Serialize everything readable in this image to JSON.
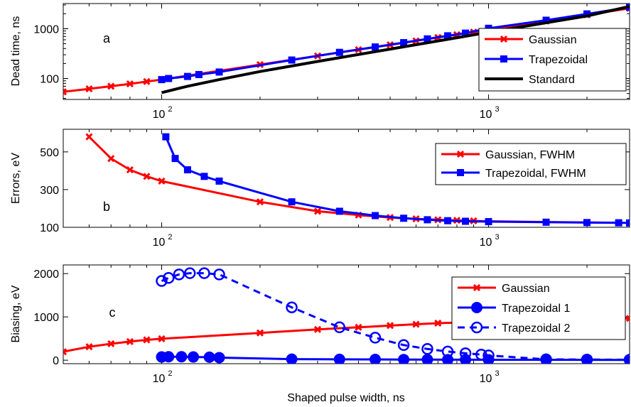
{
  "figure": {
    "xlabel": "Shaped pulse width, ns"
  },
  "chart_data": [
    {
      "type": "line",
      "panel_letter": "a",
      "ylabel": "Dead time, ns",
      "xscale": "log",
      "yscale": "log",
      "xlim": [
        50,
        2700
      ],
      "ylim": [
        38,
        3200
      ],
      "xticks": [
        {
          "value": 100,
          "base": "10",
          "exp": "2"
        },
        {
          "value": 1000,
          "base": "10",
          "exp": "3"
        }
      ],
      "yticks": [
        {
          "value": 100,
          "label": "100"
        },
        {
          "value": 1000,
          "label": "1000"
        }
      ],
      "legend_position": "bottom-right",
      "grid": false,
      "series": [
        {
          "name": "Gaussian",
          "color": "#ff0000",
          "marker": "x",
          "dash": false,
          "x": [
            50,
            60,
            70,
            80,
            90,
            100,
            200,
            300,
            400,
            500,
            600,
            700,
            800,
            900,
            1000,
            1500,
            2000,
            2700
          ],
          "y": [
            54,
            62,
            70,
            78,
            87,
            95,
            190,
            285,
            380,
            475,
            570,
            665,
            760,
            855,
            950,
            1425,
            1900,
            2565
          ]
        },
        {
          "name": "Trapezoidal",
          "color": "#0000ff",
          "marker": "square",
          "dash": false,
          "x": [
            100,
            105,
            120,
            130,
            150,
            250,
            350,
            450,
            550,
            650,
            750,
            850,
            1000,
            1500,
            2000,
            2700
          ],
          "y": [
            95,
            100,
            110,
            120,
            135,
            235,
            335,
            430,
            525,
            625,
            720,
            815,
            1020,
            1480,
            1980,
            2700
          ]
        },
        {
          "name": "Standard",
          "color": "#000000",
          "marker": "none",
          "dash": false,
          "x": [
            100,
            120,
            150,
            200,
            300,
            500,
            800,
            1000,
            1500,
            2000,
            2700
          ],
          "y": [
            52,
            70,
            95,
            138,
            220,
            390,
            660,
            850,
            1320,
            1800,
            2800
          ]
        }
      ]
    },
    {
      "type": "line",
      "panel_letter": "b",
      "ylabel": "Errors, eV",
      "xscale": "log",
      "yscale": "linear",
      "xlim": [
        50,
        2700
      ],
      "ylim": [
        100,
        620
      ],
      "xticks": [
        {
          "value": 100,
          "base": "10",
          "exp": "2"
        },
        {
          "value": 1000,
          "base": "10",
          "exp": "3"
        }
      ],
      "yticks": [
        {
          "value": 100,
          "label": "100"
        },
        {
          "value": 300,
          "label": "300"
        },
        {
          "value": 500,
          "label": "500"
        }
      ],
      "legend_position": "top-right",
      "grid": false,
      "series": [
        {
          "name": "Gaussian, FWHM",
          "color": "#ff0000",
          "marker": "x",
          "dash": false,
          "x": [
            60,
            70,
            80,
            90,
            100,
            200,
            300,
            400,
            500,
            600,
            700,
            800,
            900,
            1000,
            1500,
            2000,
            2500
          ],
          "y": [
            580,
            465,
            405,
            370,
            345,
            235,
            185,
            165,
            152,
            145,
            140,
            137,
            134,
            132,
            128,
            126,
            124
          ]
        },
        {
          "name": "Trapezoidal, FWHM",
          "color": "#0000ff",
          "marker": "square",
          "dash": false,
          "x": [
            103,
            110,
            120,
            135,
            150,
            250,
            350,
            450,
            550,
            650,
            750,
            850,
            1000,
            1500,
            2000,
            2500,
            2700
          ],
          "y": [
            580,
            465,
            405,
            370,
            345,
            235,
            185,
            162,
            148,
            140,
            135,
            132,
            130,
            127,
            125,
            124,
            123
          ]
        }
      ]
    },
    {
      "type": "line",
      "panel_letter": "c",
      "ylabel": "Biasing, eV",
      "xscale": "log",
      "yscale": "linear",
      "xlim": [
        50,
        2700
      ],
      "ylim": [
        -80,
        2200
      ],
      "xticks": [
        {
          "value": 100,
          "base": "10",
          "exp": "2"
        },
        {
          "value": 1000,
          "base": "10",
          "exp": "3"
        }
      ],
      "yticks": [
        {
          "value": 0,
          "label": "0"
        },
        {
          "value": 1000,
          "label": "1000"
        },
        {
          "value": 2000,
          "label": "2000"
        }
      ],
      "legend_position": "top-right",
      "grid": false,
      "series": [
        {
          "name": "Gaussian",
          "color": "#ff0000",
          "marker": "x",
          "dash": false,
          "x": [
            50,
            60,
            70,
            80,
            90,
            100,
            200,
            300,
            400,
            500,
            600,
            700,
            800,
            900,
            1000,
            1500,
            2000,
            2700
          ],
          "y": [
            195,
            310,
            380,
            430,
            470,
            495,
            630,
            710,
            760,
            800,
            830,
            855,
            870,
            885,
            895,
            925,
            945,
            965
          ]
        },
        {
          "name": "Trapezoidal 1",
          "color": "#0000ff",
          "marker": "circle-filled",
          "dash": false,
          "x": [
            100,
            105,
            115,
            125,
            140,
            150,
            250,
            350,
            450,
            550,
            650,
            750,
            850,
            1000,
            1500,
            2000,
            2700
          ],
          "y": [
            75,
            80,
            80,
            75,
            70,
            60,
            25,
            20,
            18,
            15,
            15,
            12,
            12,
            10,
            10,
            8,
            5
          ]
        },
        {
          "name": "Trapezoidal 2",
          "color": "#0000ff",
          "marker": "circle-open",
          "dash": true,
          "x": [
            100,
            105,
            113,
            122,
            135,
            150,
            250,
            350,
            450,
            550,
            650,
            750,
            850,
            950,
            1000,
            1500,
            2000,
            2700
          ],
          "y": [
            1830,
            1900,
            1980,
            2010,
            2010,
            1980,
            1220,
            760,
            520,
            350,
            260,
            200,
            160,
            130,
            110,
            20,
            15,
            10
          ]
        }
      ]
    }
  ]
}
